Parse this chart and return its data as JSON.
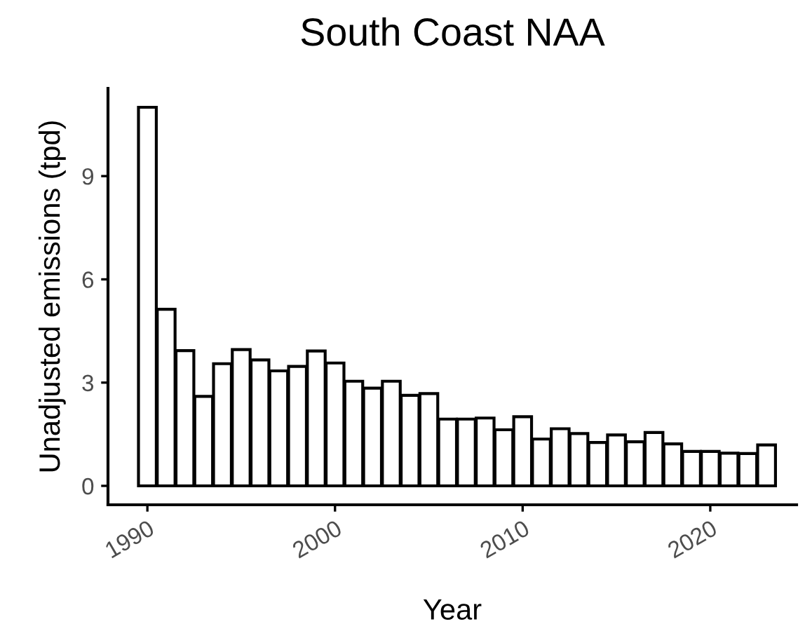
{
  "chart_data": {
    "type": "bar",
    "title": "South Coast NAA",
    "xlabel": "Year",
    "ylabel": "Unadjusted emissions (tpd)",
    "x": [
      1990,
      1991,
      1992,
      1993,
      1994,
      1995,
      1996,
      1997,
      1998,
      1999,
      2000,
      2001,
      2002,
      2003,
      2004,
      2005,
      2006,
      2007,
      2008,
      2009,
      2010,
      2011,
      2012,
      2013,
      2014,
      2015,
      2016,
      2017,
      2018,
      2019,
      2020,
      2021,
      2022,
      2023
    ],
    "values": [
      11.0,
      5.13,
      3.93,
      2.6,
      3.55,
      3.96,
      3.66,
      3.34,
      3.47,
      3.92,
      3.57,
      3.04,
      2.84,
      3.04,
      2.63,
      2.68,
      1.94,
      1.94,
      1.97,
      1.63,
      2.01,
      1.36,
      1.66,
      1.52,
      1.26,
      1.48,
      1.28,
      1.55,
      1.22,
      1.0,
      1.0,
      0.95,
      0.94,
      1.19
    ],
    "color": "#ffffff",
    "xlim": [
      1987.9,
      2024.6
    ],
    "xticks": [
      1990,
      2000,
      2010,
      2020
    ],
    "ylim": [
      -0.55,
      11.55
    ],
    "yticks": [
      0,
      3,
      6,
      9
    ],
    "grid": false,
    "legend": false
  }
}
